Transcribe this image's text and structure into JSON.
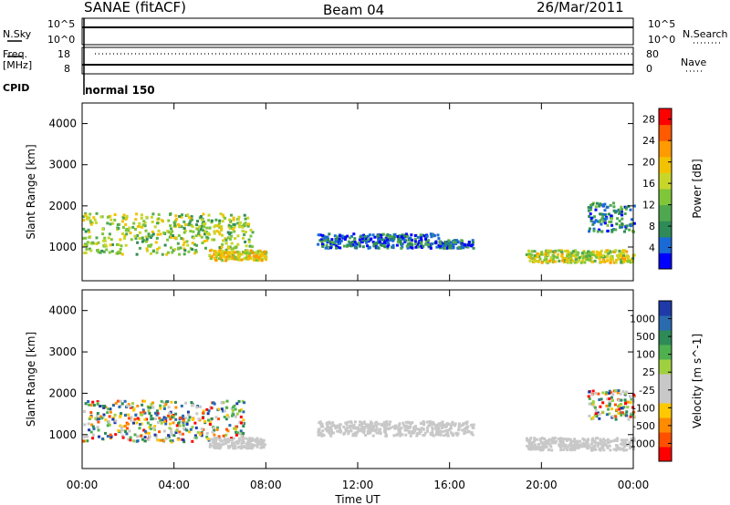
{
  "header": {
    "station": "SANAE (fitACF)",
    "beam": "Beam 04",
    "date": "26/Mar/2011"
  },
  "top_panels": {
    "nsky_label": "N.Sky",
    "nsky_tick_top": "10^5",
    "nsky_tick_bottom": "10^0",
    "nsearch_label": "N.Search",
    "nsearch_tick_top": "10^5",
    "nsearch_tick_bottom": "10^0",
    "freq_label": "Freq.",
    "freq_unit": "[MHz]",
    "freq_tick_top": "18",
    "freq_tick_bottom": "8",
    "nave_label": "Nave",
    "nave_tick_top": "80",
    "nave_tick_bottom": "0",
    "cpid_label": "CPID",
    "cpid_value": "normal 150"
  },
  "colors": {
    "power_scale": [
      "#0000ff",
      "#1a6ad6",
      "#2e8b57",
      "#4fa84f",
      "#7fc638",
      "#c8d62a",
      "#f2c200",
      "#ff9a00",
      "#ff5a00",
      "#ff0000"
    ],
    "velocity_scale": [
      "#ff0000",
      "#ff5000",
      "#ff8c00",
      "#ffc800",
      "#c8c8c8",
      "#c8c8c8",
      "#9fd040",
      "#4fb050",
      "#2e8b57",
      "#2a6bb0",
      "#1e3aa8"
    ],
    "ground_scatter": "#c8c8c8"
  },
  "chart_data": [
    {
      "type": "heatmap",
      "title": "",
      "xlabel": "Time UT",
      "ylabel": "Slant Range [km]",
      "xlim": [
        0,
        24
      ],
      "ylim": [
        180,
        4500
      ],
      "xticks": [
        "00:00",
        "04:00",
        "08:00",
        "12:00",
        "16:00",
        "20:00",
        "00:00"
      ],
      "yticks": [
        1000,
        2000,
        3000,
        4000
      ],
      "colorbar_label": "Power [dB]",
      "colorbar_ticks": [
        4,
        8,
        12,
        16,
        20,
        24,
        28
      ],
      "colorbar_range": [
        0,
        30
      ],
      "echo_regions": [
        {
          "t_start": 0.0,
          "t_end": 7.4,
          "range_start": 850,
          "range_end": 1850,
          "level": 14
        },
        {
          "t_start": 5.5,
          "t_end": 8.0,
          "range_start": 700,
          "range_end": 950,
          "level": 18
        },
        {
          "t_start": 10.2,
          "t_end": 15.5,
          "range_start": 1000,
          "range_end": 1350,
          "level": 4
        },
        {
          "t_start": 15.5,
          "t_end": 17.0,
          "range_start": 1000,
          "range_end": 1200,
          "level": 4
        },
        {
          "t_start": 19.3,
          "t_end": 24.0,
          "range_start": 650,
          "range_end": 950,
          "level": 16
        },
        {
          "t_start": 22.0,
          "t_end": 24.0,
          "range_start": 1400,
          "range_end": 2100,
          "level": 6
        }
      ]
    },
    {
      "type": "heatmap",
      "title": "",
      "xlabel": "Time UT",
      "ylabel": "Slant Range [km]",
      "xlim": [
        0,
        24
      ],
      "ylim": [
        180,
        4500
      ],
      "xticks": [
        "00:00",
        "04:00",
        "08:00",
        "12:00",
        "16:00",
        "20:00",
        "00:00"
      ],
      "yticks": [
        1000,
        2000,
        3000,
        4000
      ],
      "colorbar_label": "Velocity [m s^-1]",
      "colorbar_ticks": [
        "1000",
        "500",
        "100",
        "25",
        "-25",
        "-100",
        "-500",
        "-1000"
      ],
      "echo_regions": [
        {
          "t_start": 0.0,
          "t_end": 7.0,
          "range_start": 850,
          "range_end": 1850,
          "level": "mixed"
        },
        {
          "t_start": 5.5,
          "t_end": 8.0,
          "range_start": 700,
          "range_end": 950,
          "level": "ground"
        },
        {
          "t_start": 10.2,
          "t_end": 17.0,
          "range_start": 1000,
          "range_end": 1350,
          "level": "ground"
        },
        {
          "t_start": 19.3,
          "t_end": 24.0,
          "range_start": 650,
          "range_end": 950,
          "level": "ground"
        },
        {
          "t_start": 22.0,
          "t_end": 24.0,
          "range_start": 1400,
          "range_end": 2100,
          "level": "mixed"
        }
      ]
    }
  ]
}
